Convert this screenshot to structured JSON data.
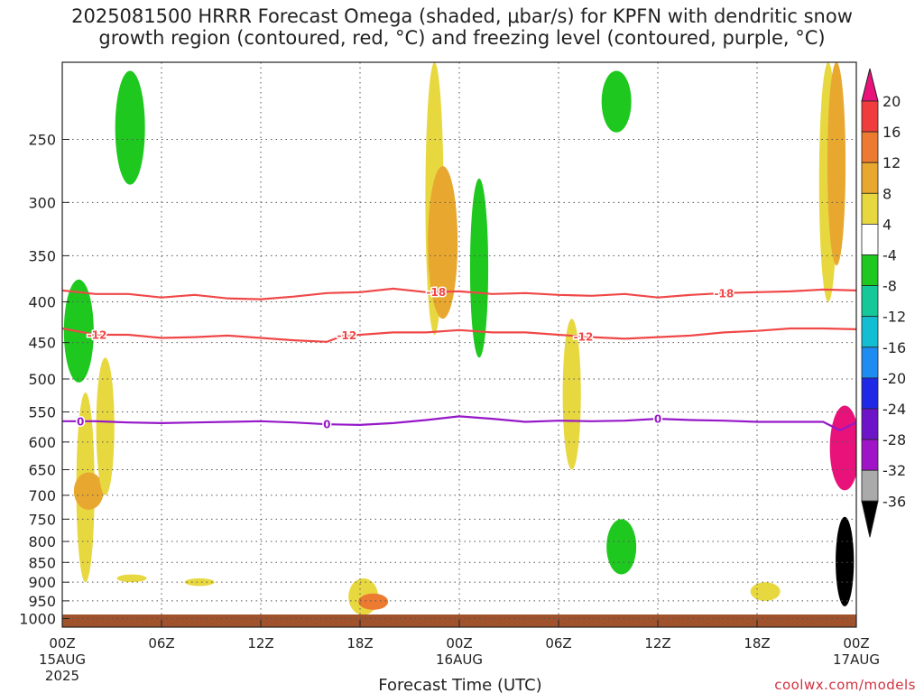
{
  "title": "2025081500 HRRR Forecast Omega (shaded, μbar/s) for KPFN with dendritic snow\ngrowth region (contoured, red, °C) and freezing level (contoured, purple, °C)",
  "credit": "coolwx.com/models",
  "chart_data": {
    "type": "heatmap",
    "title": "2025081500 HRRR Forecast Omega (shaded, μbar/s) for KPFN with dendritic snow growth region (contoured, red, °C) and freezing level (contoured, purple, °C)",
    "xlabel": "Forecast Time (UTC)",
    "ylabel": "",
    "x_range_hours": [
      0,
      48
    ],
    "y_range_mb": [
      1025,
      200
    ],
    "y_scale": "log-pressure",
    "grid": true,
    "x_ticks": [
      {
        "hour": 0,
        "label": "00Z",
        "sub": [
          "15AUG",
          "2025"
        ]
      },
      {
        "hour": 6,
        "label": "06Z",
        "sub": []
      },
      {
        "hour": 12,
        "label": "12Z",
        "sub": []
      },
      {
        "hour": 18,
        "label": "18Z",
        "sub": []
      },
      {
        "hour": 24,
        "label": "00Z",
        "sub": [
          "16AUG"
        ]
      },
      {
        "hour": 30,
        "label": "06Z",
        "sub": []
      },
      {
        "hour": 36,
        "label": "12Z",
        "sub": []
      },
      {
        "hour": 42,
        "label": "18Z",
        "sub": []
      },
      {
        "hour": 48,
        "label": "00Z",
        "sub": [
          "17AUG"
        ]
      }
    ],
    "y_ticks": [
      250,
      300,
      350,
      400,
      450,
      500,
      550,
      600,
      650,
      700,
      750,
      800,
      850,
      900,
      950,
      1000
    ],
    "colorbar": {
      "labels": [
        "20",
        "16",
        "12",
        "8",
        "4",
        "-4",
        "-8",
        "-12",
        "-16",
        "-20",
        "-24",
        "-28",
        "-32",
        "-36"
      ],
      "bins": [
        {
          "min": 20,
          "max": null,
          "color": "#e8127a"
        },
        {
          "min": 16,
          "max": 20,
          "color": "#f03c3c"
        },
        {
          "min": 12,
          "max": 16,
          "color": "#ec7a30"
        },
        {
          "min": 8,
          "max": 12,
          "color": "#e8a830"
        },
        {
          "min": 4,
          "max": 8,
          "color": "#e8d840"
        },
        {
          "min": -4,
          "max": 4,
          "color": "#ffffff"
        },
        {
          "min": -8,
          "max": -4,
          "color": "#1ec81e"
        },
        {
          "min": -12,
          "max": -8,
          "color": "#14c89a"
        },
        {
          "min": -16,
          "max": -12,
          "color": "#14bed2"
        },
        {
          "min": -20,
          "max": -16,
          "color": "#1e8cf0"
        },
        {
          "min": -24,
          "max": -20,
          "color": "#1e28e6"
        },
        {
          "min": -28,
          "max": -24,
          "color": "#6e14c8"
        },
        {
          "min": -32,
          "max": -28,
          "color": "#a014c8"
        },
        {
          "min": -36,
          "max": -32,
          "color": "#aaaaaa"
        },
        {
          "min": null,
          "max": -36,
          "color": "#000000"
        }
      ]
    },
    "contours": [
      {
        "name": "-18",
        "color": "#f04848",
        "label_hours": [
          22.6,
          40.0
        ],
        "points": [
          [
            0,
            387
          ],
          [
            2,
            391
          ],
          [
            4,
            391
          ],
          [
            6,
            395
          ],
          [
            8,
            392
          ],
          [
            10,
            396
          ],
          [
            12,
            397
          ],
          [
            14,
            394
          ],
          [
            16,
            390
          ],
          [
            18,
            389
          ],
          [
            20,
            385
          ],
          [
            22,
            389
          ],
          [
            24,
            388
          ],
          [
            26,
            391
          ],
          [
            28,
            390
          ],
          [
            30,
            392
          ],
          [
            32,
            393
          ],
          [
            34,
            391
          ],
          [
            36,
            395
          ],
          [
            38,
            392
          ],
          [
            40,
            390
          ],
          [
            42,
            389
          ],
          [
            44,
            388
          ],
          [
            46,
            386
          ],
          [
            48,
            387
          ]
        ]
      },
      {
        "name": "-12",
        "color": "#f04848",
        "label_hours": [
          2.1,
          17.2,
          31.5
        ],
        "points": [
          [
            0,
            432
          ],
          [
            2,
            440
          ],
          [
            4,
            440
          ],
          [
            6,
            444
          ],
          [
            8,
            443
          ],
          [
            10,
            441
          ],
          [
            12,
            444
          ],
          [
            14,
            447
          ],
          [
            16,
            449
          ],
          [
            17,
            441
          ],
          [
            18,
            440
          ],
          [
            20,
            437
          ],
          [
            22,
            437
          ],
          [
            24,
            434
          ],
          [
            26,
            437
          ],
          [
            28,
            437
          ],
          [
            30,
            440
          ],
          [
            32,
            443
          ],
          [
            34,
            445
          ],
          [
            36,
            443
          ],
          [
            38,
            441
          ],
          [
            40,
            437
          ],
          [
            42,
            435
          ],
          [
            44,
            432
          ],
          [
            46,
            432
          ],
          [
            48,
            433
          ]
        ]
      },
      {
        "name": "0",
        "color": "#9618c8",
        "label_hours": [
          1.1,
          16.0,
          36.0
        ],
        "points": [
          [
            0,
            565
          ],
          [
            2,
            565
          ],
          [
            4,
            567
          ],
          [
            6,
            568
          ],
          [
            8,
            567
          ],
          [
            10,
            566
          ],
          [
            12,
            565
          ],
          [
            14,
            567
          ],
          [
            16,
            570
          ],
          [
            18,
            571
          ],
          [
            20,
            568
          ],
          [
            22,
            563
          ],
          [
            24,
            557
          ],
          [
            26,
            561
          ],
          [
            28,
            566
          ],
          [
            30,
            564
          ],
          [
            32,
            565
          ],
          [
            34,
            564
          ],
          [
            36,
            561
          ],
          [
            38,
            563
          ],
          [
            40,
            564
          ],
          [
            42,
            566
          ],
          [
            44,
            566
          ],
          [
            46,
            566
          ],
          [
            47,
            580
          ],
          [
            48,
            567
          ]
        ]
      }
    ],
    "shaded_regions": [
      {
        "value": 6,
        "hour": 1.4,
        "p_top": 520,
        "p_bot": 900
      },
      {
        "value": 9,
        "hour": 1.6,
        "p_top": 655,
        "p_bot": 730
      },
      {
        "value": 5,
        "hour": 2.6,
        "p_top": 470,
        "p_bot": 700
      },
      {
        "value": -6,
        "hour": 1.0,
        "p_top": 375,
        "p_bot": 505
      },
      {
        "value": -6,
        "hour": 4.1,
        "p_top": 205,
        "p_bot": 285
      },
      {
        "value": 5,
        "hour": 4.2,
        "p_top": 880,
        "p_bot": 900
      },
      {
        "value": 5,
        "hour": 8.3,
        "p_top": 890,
        "p_bot": 910
      },
      {
        "value": 6,
        "hour": 18.2,
        "p_top": 890,
        "p_bot": 990
      },
      {
        "value": 14,
        "hour": 18.8,
        "p_top": 930,
        "p_bot": 975
      },
      {
        "value": 6,
        "hour": 22.5,
        "p_top": 200,
        "p_bot": 440
      },
      {
        "value": 10,
        "hour": 23.0,
        "p_top": 270,
        "p_bot": 420
      },
      {
        "value": -7,
        "hour": 25.2,
        "p_top": 280,
        "p_bot": 470
      },
      {
        "value": -6,
        "hour": 33.5,
        "p_top": 205,
        "p_bot": 245
      },
      {
        "value": -7,
        "hour": 33.8,
        "p_top": 750,
        "p_bot": 880
      },
      {
        "value": 6,
        "hour": 30.8,
        "p_top": 420,
        "p_bot": 650
      },
      {
        "value": 6,
        "hour": 42.5,
        "p_top": 900,
        "p_bot": 950
      },
      {
        "value": 6,
        "hour": 46.3,
        "p_top": 200,
        "p_bot": 400
      },
      {
        "value": 10,
        "hour": 46.8,
        "p_top": 200,
        "p_bot": 360
      },
      {
        "value": 22,
        "hour": 47.3,
        "p_top": 540,
        "p_bot": 690
      },
      {
        "value": -40,
        "hour": 47.3,
        "p_top": 745,
        "p_bot": 965
      }
    ],
    "surface": {
      "color": "#a0522d"
    }
  }
}
